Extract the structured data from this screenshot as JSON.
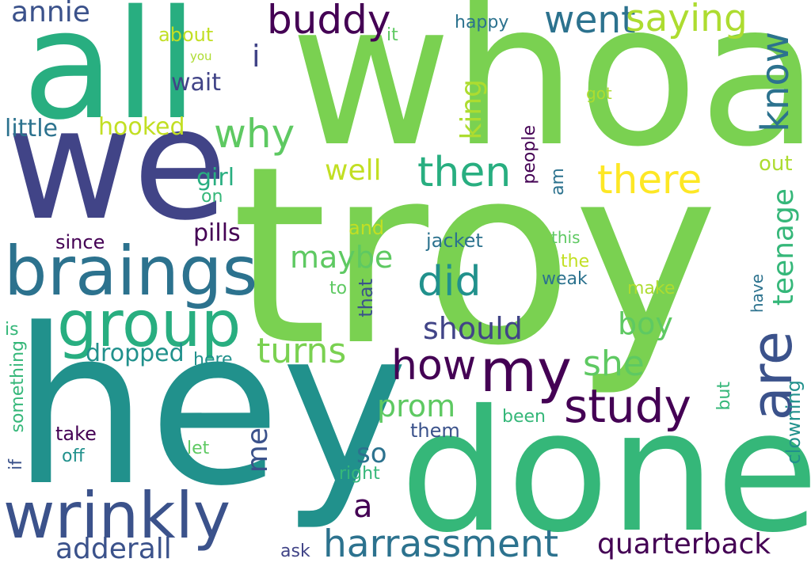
{
  "palette": {
    "background": "#ffffff",
    "dark_purple": "#440154",
    "indigo": "#414487",
    "slate_blue": "#3b528b",
    "steel_blue": "#2c728e",
    "teal": "#21918c",
    "sea_green": "#28ae80",
    "green": "#5ec962",
    "light_green": "#7ad151",
    "lime": "#addc30",
    "yellow_green": "#c2df23",
    "yellow": "#fde725"
  },
  "words": {
    "troy": "troy",
    "hey": "hey",
    "whoa": "whoa",
    "done": "done",
    "all": "all",
    "we": "we",
    "braings": "braings",
    "group": "group",
    "wrinkly": "wrinkly",
    "my": "my",
    "are": "are",
    "study": "study",
    "how": "how",
    "harrassment": "harrassment",
    "buddy": "buddy",
    "went": "went",
    "saying": "saying",
    "know": "know",
    "then": "then",
    "there": "there",
    "did": "did",
    "why": "why",
    "turns": "turns",
    "quarterback": "quarterback",
    "adderall": "adderall",
    "she": "she",
    "prom": "prom",
    "should": "should",
    "maybe": "maybe",
    "boy": "boy",
    "annie": "annie",
    "teenage": "teenage",
    "well": "well",
    "king": "king",
    "me": "me",
    "so": "so",
    "a": "a",
    "i": "i",
    "pills": "pills",
    "dropped": "dropped",
    "hooked": "hooked",
    "little": "little",
    "girl": "girl",
    "wait": "wait",
    "out": "out",
    "clowning": "clowning",
    "jacket": "jacket",
    "something": "something",
    "that": "that",
    "people": "people",
    "take": "take",
    "since": "since",
    "about": "about",
    "and": "and",
    "them": "them",
    "weak": "weak",
    "make": "make",
    "right": "right",
    "been": "been",
    "off": "off",
    "here": "here",
    "ask": "ask",
    "happy": "happy",
    "the": "the",
    "let": "let",
    "am": "am",
    "but": "but",
    "it": "it",
    "on": "on",
    "to": "to",
    "got": "got",
    "this": "this",
    "have": "have",
    "is": "is",
    "if": "if",
    "you": "you"
  }
}
